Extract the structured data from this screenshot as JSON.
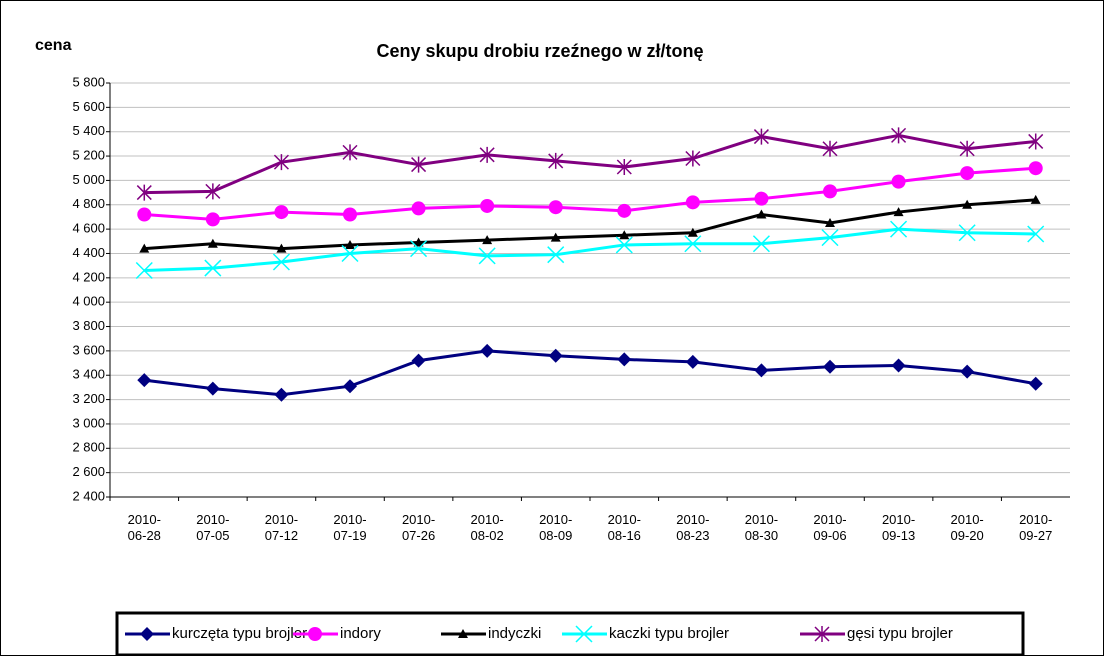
{
  "chart_data": {
    "type": "line",
    "title": "Ceny skupu drobiu rzeźnego w zł/tonę",
    "y_label": "cena",
    "categories": [
      "2010-06-28",
      "2010-07-05",
      "2010-07-12",
      "2010-07-19",
      "2010-07-26",
      "2010-08-02",
      "2010-08-09",
      "2010-08-16",
      "2010-08-23",
      "2010-08-30",
      "2010-09-06",
      "2010-09-13",
      "2010-09-20",
      "2010-09-27"
    ],
    "series": [
      {
        "name": "kurczęta typu brojler",
        "color": "#000080",
        "marker": "diamond",
        "values": [
          3360,
          3290,
          3240,
          3310,
          3520,
          3600,
          3560,
          3530,
          3510,
          3440,
          3470,
          3480,
          3430,
          3330
        ]
      },
      {
        "name": "indory",
        "color": "#ff00ff",
        "marker": "circle",
        "values": [
          4720,
          4680,
          4740,
          4720,
          4770,
          4790,
          4780,
          4750,
          4820,
          4850,
          4910,
          4990,
          5060,
          5100
        ]
      },
      {
        "name": "indyczki",
        "color": "#000000",
        "marker": "triangle",
        "values": [
          4440,
          4480,
          4440,
          4470,
          4490,
          4510,
          4530,
          4550,
          4570,
          4720,
          4650,
          4740,
          4800,
          4840
        ]
      },
      {
        "name": "kaczki typu brojler",
        "color": "#00ffff",
        "marker": "x",
        "values": [
          4260,
          4280,
          4330,
          4400,
          4440,
          4380,
          4390,
          4470,
          4480,
          4480,
          4530,
          4600,
          4570,
          4560
        ]
      },
      {
        "name": "gęsi typu brojler",
        "color": "#800080",
        "marker": "star",
        "values": [
          4900,
          4910,
          5150,
          5230,
          5130,
          5210,
          5160,
          5110,
          5180,
          5360,
          5260,
          5370,
          5260,
          5320
        ]
      }
    ],
    "ylim": [
      2400,
      5800
    ],
    "yticks": [
      {
        "value": 2400,
        "label": "2 400"
      },
      {
        "value": 2600,
        "label": "2 600"
      },
      {
        "value": 2800,
        "label": "2 800"
      },
      {
        "value": 3000,
        "label": "3 000"
      },
      {
        "value": 3200,
        "label": "3 200"
      },
      {
        "value": 3400,
        "label": "3 400"
      },
      {
        "value": 3600,
        "label": "3 600"
      },
      {
        "value": 3800,
        "label": "3 800"
      },
      {
        "value": 4000,
        "label": "4 000"
      },
      {
        "value": 4200,
        "label": "4 200"
      },
      {
        "value": 4400,
        "label": "4 400"
      },
      {
        "value": 4600,
        "label": "4 600"
      },
      {
        "value": 4800,
        "label": "4 800"
      },
      {
        "value": 5000,
        "label": "5 000"
      },
      {
        "value": 5200,
        "label": "5 200"
      },
      {
        "value": 5400,
        "label": "5 400"
      },
      {
        "value": 5600,
        "label": "5 600"
      },
      {
        "value": 5800,
        "label": "5 800"
      }
    ],
    "grid": true,
    "legend": "bottom"
  }
}
